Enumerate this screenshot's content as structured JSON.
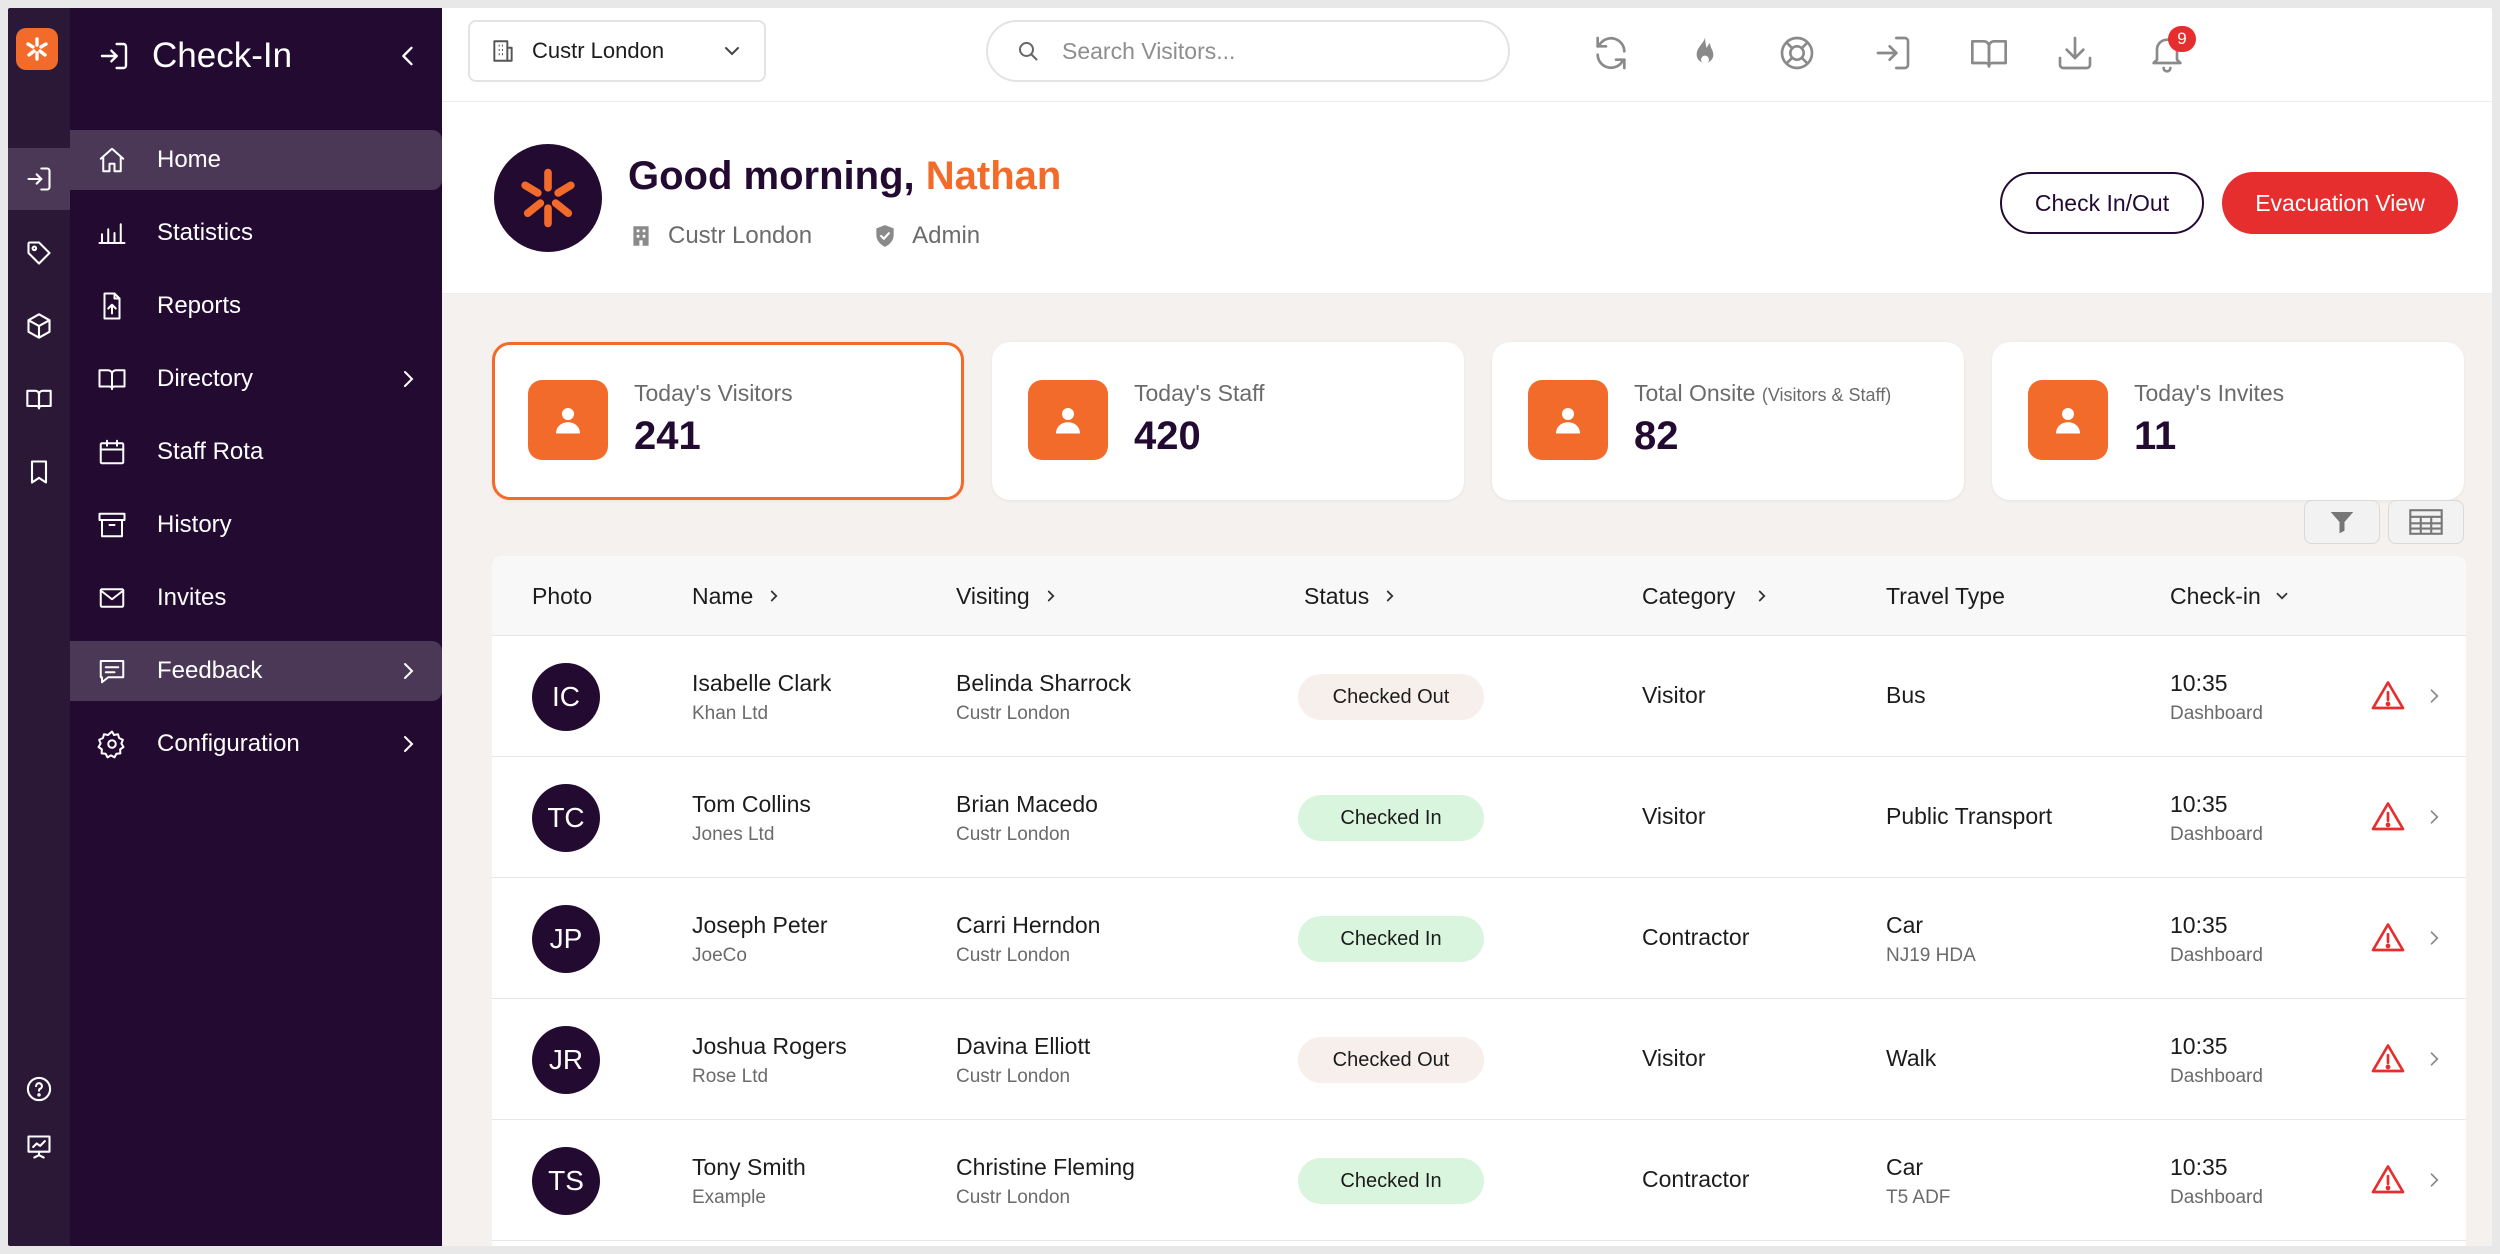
{
  "app": {
    "title": "Check-In",
    "colors": {
      "brand": "#f26b2a",
      "sidebar": "#230a31",
      "danger": "#e62e2e",
      "status_in": "#d9f5dd",
      "status_out": "#f6efec"
    }
  },
  "rail": {
    "top_icons": [
      "check-in-icon",
      "tag-icon",
      "box-icon",
      "book-icon",
      "bookmark-icon"
    ],
    "bottom_icons": [
      "help-icon",
      "presentation-icon"
    ]
  },
  "sidebar": {
    "items": [
      {
        "label": "Home",
        "icon": "home-icon",
        "state": "active",
        "has_children": false
      },
      {
        "label": "Statistics",
        "icon": "bar-chart-icon",
        "state": "",
        "has_children": false
      },
      {
        "label": "Reports",
        "icon": "file-upload-icon",
        "state": "",
        "has_children": false
      },
      {
        "label": "Directory",
        "icon": "book-icon",
        "state": "",
        "has_children": true
      },
      {
        "label": "Staff Rota",
        "icon": "calendar-icon",
        "state": "",
        "has_children": false
      },
      {
        "label": "History",
        "icon": "archive-icon",
        "state": "",
        "has_children": false
      },
      {
        "label": "Invites",
        "icon": "mail-icon",
        "state": "",
        "has_children": false
      },
      {
        "label": "Feedback",
        "icon": "chat-icon",
        "state": "soft",
        "has_children": true
      },
      {
        "label": "Configuration",
        "icon": "gear-icon",
        "state": "",
        "has_children": true
      }
    ]
  },
  "topbar": {
    "location": "Custr London",
    "search_placeholder": "Search Visitors...",
    "notifications_count": "9",
    "icons": [
      "refresh-icon",
      "fire-icon",
      "lifebuoy-icon",
      "sign-in-icon",
      "book-open-icon",
      "download-icon",
      "bell-icon"
    ]
  },
  "greeting": {
    "salutation": "Good morning, ",
    "name": "Nathan",
    "site": "Custr London",
    "role": "Admin",
    "check_in_out_label": "Check In/Out",
    "evacuation_label": "Evacuation View"
  },
  "stats": [
    {
      "label": "Today's Visitors",
      "suffix": "",
      "value": "241"
    },
    {
      "label": "Today's Staff",
      "suffix": "",
      "value": "420"
    },
    {
      "label": "Total Onsite ",
      "suffix": "(Visitors & Staff)",
      "value": "82"
    },
    {
      "label": "Today's Invites",
      "suffix": "",
      "value": "11"
    }
  ],
  "table": {
    "headers": {
      "photo": "Photo",
      "name": "Name",
      "visiting": "Visiting",
      "status": "Status",
      "category": "Category",
      "travel": "Travel Type",
      "checkin": "Check-in"
    },
    "rows": [
      {
        "initials": "IC",
        "name": "Isabelle Clark",
        "company": "Khan Ltd",
        "visiting": "Belinda Sharrock",
        "visiting_site": "Custr London",
        "status": "Checked Out",
        "category": "Visitor",
        "travel": "Bus",
        "travel_detail": "",
        "time": "10:35",
        "source": "Dashboard"
      },
      {
        "initials": "TC",
        "name": "Tom Collins",
        "company": "Jones Ltd",
        "visiting": "Brian Macedo",
        "visiting_site": "Custr London",
        "status": "Checked In",
        "category": "Visitor",
        "travel": "Public Transport",
        "travel_detail": "",
        "time": "10:35",
        "source": "Dashboard"
      },
      {
        "initials": "JP",
        "name": "Joseph Peter",
        "company": "JoeCo",
        "visiting": "Carri Herndon",
        "visiting_site": "Custr London",
        "status": "Checked In",
        "category": "Contractor",
        "travel": "Car",
        "travel_detail": "NJ19 HDA",
        "time": "10:35",
        "source": "Dashboard"
      },
      {
        "initials": "JR",
        "name": "Joshua Rogers",
        "company": "Rose Ltd",
        "visiting": "Davina Elliott",
        "visiting_site": "Custr London",
        "status": "Checked Out",
        "category": "Visitor",
        "travel": "Walk",
        "travel_detail": "",
        "time": "10:35",
        "source": "Dashboard"
      },
      {
        "initials": "TS",
        "name": "Tony Smith",
        "company": "Example",
        "visiting": "Christine Fleming",
        "visiting_site": "Custr London",
        "status": "Checked In",
        "category": "Contractor",
        "travel": "Car",
        "travel_detail": "T5 ADF",
        "time": "10:35",
        "source": "Dashboard"
      }
    ]
  }
}
